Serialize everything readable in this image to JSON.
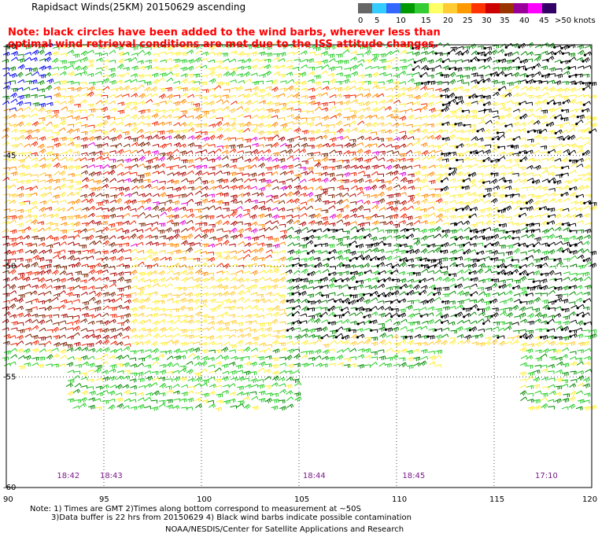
{
  "title": "Rapidsact Winds(25KM) 20150629 ascending",
  "note": "Note: black circles have been added to the wind barbs, wherever less than optimal wind retrieval conditions are met due to the ISS attitude changes.",
  "legend": {
    "colors": [
      "#666666",
      "#33ccff",
      "#3366ff",
      "#009900",
      "#33cc33",
      "#ffff66",
      "#ffcc33",
      "#ff9900",
      "#ff3300",
      "#cc0000",
      "#993300",
      "#990099",
      "#ff00ff",
      "#330066"
    ],
    "labels": [
      "0",
      "5",
      "10",
      "15",
      "20",
      "25",
      "30",
      "35",
      "40",
      "45",
      ">50 knots"
    ]
  },
  "map": {
    "lon_range": [
      90,
      120
    ],
    "lat_range": [
      -60,
      -40
    ],
    "lon_ticks": [
      "90",
      "95",
      "100",
      "105",
      "110",
      "115",
      "120"
    ],
    "lat_ticks": [
      "-40",
      "-45",
      "-50",
      "-55",
      "-60"
    ]
  },
  "times": [
    {
      "label": "18:42",
      "lon": 93.0
    },
    {
      "label": "18:43",
      "lon": 95.2
    },
    {
      "label": "18:44",
      "lon": 105.6
    },
    {
      "label": "18:45",
      "lon": 110.7
    },
    {
      "label": "17:10",
      "lon": 117.5
    }
  ],
  "footer": {
    "line1": "Note: 1) Times are GMT 2)Times along bottom correspond to measurement at ~50S",
    "line2": "3)Data buffer is 22 hrs from 20150629 4) Black wind barbs indicate possible contamination",
    "credit": "NOAA/NESDIS/Center for Satellite Applications and Research"
  }
}
